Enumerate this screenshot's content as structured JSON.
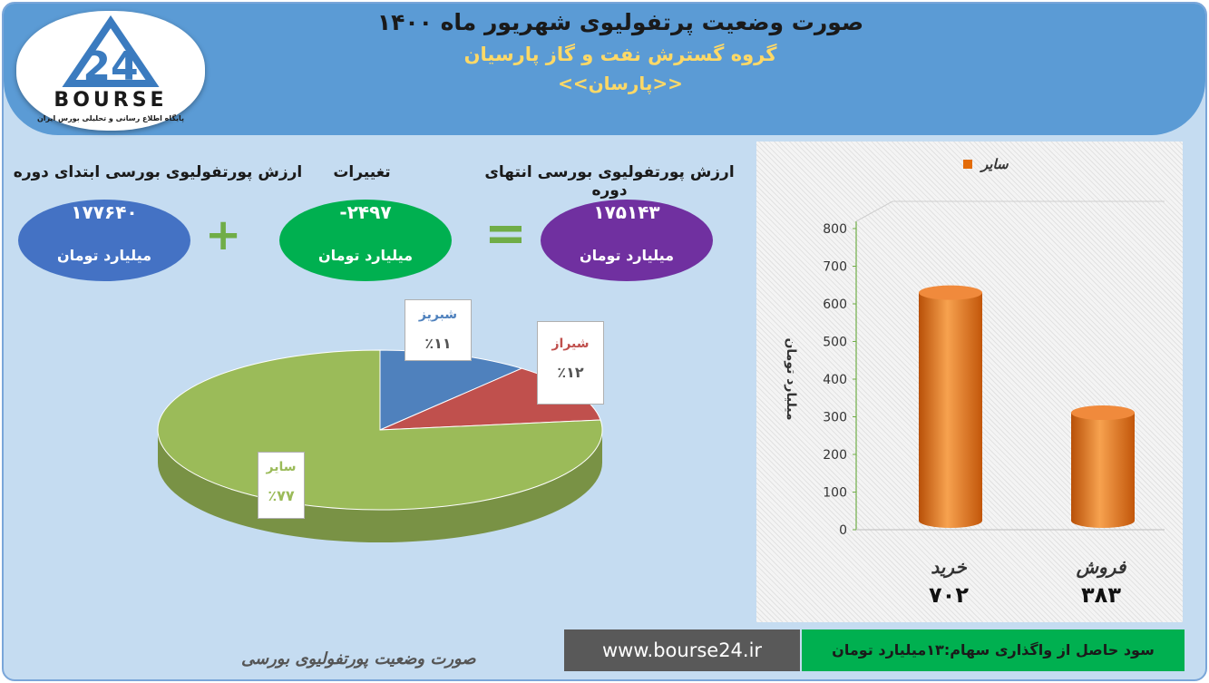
{
  "header": {
    "title": "صورت وضعیت پرتفولیوی شهریور ماه ۱۴۰۰",
    "subtitle": "گروه گسترش نفت و گاز پارسیان",
    "symbol": "<<پارسان>>"
  },
  "logo": {
    "word": "BOURSE",
    "number": "24",
    "tagline": "پایگاه اطلاع رسانی و تحلیلی بورس ایران"
  },
  "summary": {
    "start": {
      "label": "ارزش پورتفولیوی بورسی ابتدای دوره",
      "value": "۱۷۷۶۴۰",
      "unit": "میلیارد تومان",
      "color": "#4472c4"
    },
    "change": {
      "label": "تغییرات",
      "value": "-۲۴۹۷",
      "unit": "میلیارد تومان",
      "color": "#00b050"
    },
    "end": {
      "label": "ارزش پورتفولیوی بورسی انتهای دوره",
      "value": "۱۷۵۱۴۳",
      "unit": "میلیارد تومان",
      "color": "#7030a0"
    },
    "plus": "+",
    "equals": "="
  },
  "colors": {
    "pie_shabriz": "#4f81bd",
    "pie_shiraz": "#c0504d",
    "pie_sayer": "#9bbb59",
    "bar": "#e36c09",
    "accent": "#70ad47"
  },
  "chart_data": [
    {
      "type": "pie",
      "categories": [
        "شبریز",
        "شیراز",
        "سایر"
      ],
      "values": [
        11,
        12,
        77
      ],
      "labels": [
        "٪۱۱",
        "٪۱۲",
        "٪۷۷"
      ],
      "title": ""
    },
    {
      "type": "bar",
      "categories": [
        "خرید",
        "فروش"
      ],
      "values": [
        702,
        383
      ],
      "value_labels": [
        "۷۰۲",
        "۳۸۳"
      ],
      "series": [
        {
          "name": "سایر",
          "values": [
            702,
            383
          ]
        }
      ],
      "legend": "top-right",
      "ylabel": "میلیارد تومان",
      "ylim": [
        0,
        800
      ],
      "yticks": [
        "0",
        "100",
        "200",
        "300",
        "400",
        "500",
        "600",
        "700",
        "800"
      ],
      "grid": false
    }
  ],
  "footer": {
    "caption": "صورت وضعیت پورتفولیوی بورسی",
    "url": "www.bourse24.ir",
    "profit": "سود حاصل از واگذاری سهام:۱۳میلیارد تومان"
  }
}
